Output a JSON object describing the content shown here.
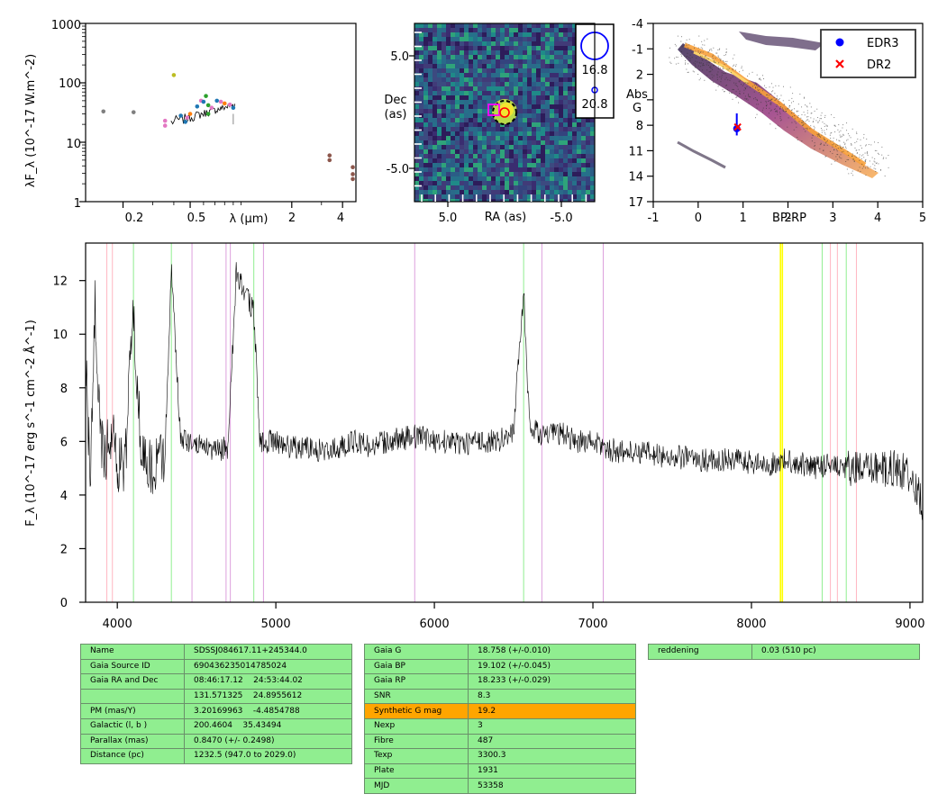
{
  "sed": {
    "ylabel": "λF_λ (10^-17 W.m^-2)",
    "xlabel": "λ (μm)",
    "yticks": [
      "1",
      "10",
      "100",
      "1000"
    ],
    "xticks": [
      "0.2",
      "0.5",
      "2",
      "4"
    ]
  },
  "image_panel": {
    "xlabel": "RA (as)",
    "ylabel": "Dec (as)",
    "xticks": [
      "5.0",
      "-5.0"
    ],
    "yticks": [
      "5.0",
      "-5.0"
    ],
    "legend": [
      "16.8",
      "20.8"
    ]
  },
  "hrd": {
    "xlabel": "BP-RP",
    "ylabel": "Abs G",
    "xticks": [
      "-1",
      "0",
      "1",
      "2",
      "3",
      "4",
      "5"
    ],
    "yticks": [
      "-4",
      "-1",
      "2",
      "5",
      "8",
      "11",
      "14",
      "17"
    ],
    "legend": [
      {
        "label": "EDR3",
        "color": "#0000ff"
      },
      {
        "label": "DR2",
        "color": "#ff0000"
      }
    ]
  },
  "spectrum": {
    "ylabel": "F_λ (10^-17 erg s^-1 cm^-2 Å^-1)",
    "xticks": [
      "4000",
      "5000",
      "6000",
      "7000",
      "8000",
      "9000"
    ],
    "yticks": [
      "0",
      "2",
      "4",
      "6",
      "8",
      "10",
      "12"
    ]
  },
  "chart_data": [
    {
      "type": "scatter",
      "name": "sed",
      "xscale": "log",
      "yscale": "log",
      "xlim": [
        0.12,
        4.8
      ],
      "ylim": [
        1,
        1000
      ],
      "points": [
        {
          "x": 0.153,
          "y": 33,
          "color": "#7f7f7f"
        },
        {
          "x": 0.231,
          "y": 32,
          "color": "#7f7f7f"
        },
        {
          "x": 0.355,
          "y": 23,
          "color": "#e377c2"
        },
        {
          "x": 0.355,
          "y": 19,
          "color": "#e377c2"
        },
        {
          "x": 0.4,
          "y": 135,
          "color": "#bcbd22"
        },
        {
          "x": 0.44,
          "y": 28,
          "color": "#1f77b4"
        },
        {
          "x": 0.468,
          "y": 22,
          "color": "#1f77b4"
        },
        {
          "x": 0.48,
          "y": 26,
          "color": "#e377c2"
        },
        {
          "x": 0.5,
          "y": 30,
          "color": "#ff7f0e"
        },
        {
          "x": 0.55,
          "y": 40,
          "color": "#1f77b4"
        },
        {
          "x": 0.58,
          "y": 50,
          "color": "#e377c2"
        },
        {
          "x": 0.6,
          "y": 48,
          "color": "#1f77b4"
        },
        {
          "x": 0.62,
          "y": 60,
          "color": "#2ca02c"
        },
        {
          "x": 0.64,
          "y": 42,
          "color": "#2ca02c"
        },
        {
          "x": 0.64,
          "y": 30,
          "color": "#2ca02c"
        },
        {
          "x": 0.67,
          "y": 38,
          "color": "#e377c2"
        },
        {
          "x": 0.72,
          "y": 50,
          "color": "#1f77b4"
        },
        {
          "x": 0.76,
          "y": 48,
          "color": "#e377c2"
        },
        {
          "x": 0.8,
          "y": 45,
          "color": "#ff7f0e"
        },
        {
          "x": 0.86,
          "y": 43,
          "color": "#e377c2"
        },
        {
          "x": 0.9,
          "y": 38,
          "color": "#1f77b4"
        },
        {
          "x": 3.35,
          "y": 6,
          "color": "#8c564b"
        },
        {
          "x": 3.35,
          "y": 5,
          "color": "#8c564b"
        },
        {
          "x": 4.6,
          "y": 3.8,
          "color": "#8c564b"
        },
        {
          "x": 4.6,
          "y": 2.9,
          "color": "#8c564b"
        },
        {
          "x": 4.6,
          "y": 2.4,
          "color": "#8c564b"
        }
      ]
    },
    {
      "type": "scatter",
      "name": "hrd",
      "xlim": [
        -1,
        5
      ],
      "ylim": [
        17,
        -4
      ],
      "series": [
        {
          "name": "EDR3",
          "x": [
            0.86
          ],
          "y": [
            8.4
          ],
          "color": "#0000ff"
        },
        {
          "name": "DR2",
          "x": [
            0.88
          ],
          "y": [
            8.2
          ],
          "color": "#ff0000"
        }
      ]
    },
    {
      "type": "line",
      "name": "spectrum",
      "xlim": [
        3800,
        9080
      ],
      "ylim": [
        0,
        13.4
      ],
      "x": [
        3800,
        3830,
        3860,
        3890,
        3920,
        3950,
        3970,
        4000,
        4050,
        4100,
        4150,
        4200,
        4300,
        4340,
        4400,
        4500,
        4600,
        4700,
        4750,
        4861,
        4900,
        5000,
        5100,
        5200,
        5300,
        5400,
        5500,
        5600,
        5700,
        5800,
        5900,
        6000,
        6100,
        6200,
        6300,
        6400,
        6500,
        6563,
        6600,
        6700,
        6800,
        6900,
        7000,
        7100,
        7200,
        7300,
        7400,
        7500,
        7600,
        7700,
        7800,
        7900,
        8000,
        8100,
        8200,
        8300,
        8400,
        8500,
        8600,
        8700,
        8800,
        8900,
        9000,
        9080
      ],
      "y": [
        9.0,
        4.5,
        11.0,
        6.5,
        5.5,
        6.0,
        6.2,
        5.2,
        5.0,
        11.2,
        5.6,
        5.0,
        5.4,
        12.5,
        6.0,
        6.0,
        5.6,
        5.8,
        12.3,
        10.8,
        6.0,
        6.0,
        5.8,
        5.8,
        5.6,
        5.8,
        6.0,
        5.8,
        6.0,
        6.1,
        6.2,
        6.0,
        6.0,
        5.9,
        6.0,
        6.0,
        6.4,
        11.6,
        6.5,
        6.2,
        6.3,
        6.0,
        6.0,
        5.7,
        5.6,
        5.6,
        5.5,
        5.4,
        5.4,
        5.3,
        5.3,
        5.3,
        5.2,
        5.1,
        5.3,
        5.2,
        5.0,
        5.2,
        5.0,
        4.9,
        5.0,
        5.0,
        4.8,
        3.6
      ],
      "vlines": [
        {
          "x": 3934,
          "color": "#ffb6c1"
        },
        {
          "x": 3969,
          "color": "#ffb6c1"
        },
        {
          "x": 4102,
          "color": "#90ee90"
        },
        {
          "x": 4341,
          "color": "#90ee90"
        },
        {
          "x": 4471,
          "color": "#dda0dd"
        },
        {
          "x": 4686,
          "color": "#dda0dd"
        },
        {
          "x": 4713,
          "color": "#dda0dd"
        },
        {
          "x": 4861,
          "color": "#90ee90"
        },
        {
          "x": 4922,
          "color": "#dda0dd"
        },
        {
          "x": 5876,
          "color": "#dda0dd"
        },
        {
          "x": 6563,
          "color": "#90ee90"
        },
        {
          "x": 6678,
          "color": "#dda0dd"
        },
        {
          "x": 7065,
          "color": "#dda0dd"
        },
        {
          "x": 8183,
          "color": "#ffff00"
        },
        {
          "x": 8195,
          "color": "#ffff00"
        },
        {
          "x": 8446,
          "color": "#90ee90"
        },
        {
          "x": 8498,
          "color": "#ffb6c1"
        },
        {
          "x": 8542,
          "color": "#ffb6c1"
        },
        {
          "x": 8598,
          "color": "#90ee90"
        },
        {
          "x": 8662,
          "color": "#ffb6c1"
        }
      ]
    }
  ],
  "tables": {
    "left": [
      {
        "k": "Name",
        "v": "SDSSJ084617.11+245344.0"
      },
      {
        "k": "Gaia Source ID",
        "v": "690436235014785024"
      },
      {
        "k": "Gaia RA and Dec",
        "v": "08:46:17.12    24:53:44.02"
      },
      {
        "k": "",
        "v": "131.571325    24.8955612"
      },
      {
        "k": "PM (mas/Y)",
        "v": "3.20169963    -4.4854788"
      },
      {
        "k": "Galactic (l, b )",
        "v": "200.4604    35.43494"
      },
      {
        "k": "Parallax (mas)",
        "v": "0.8470 (+/- 0.2498)"
      },
      {
        "k": "Distance (pc)",
        "v": "1232.5 (947.0 to 2029.0)"
      }
    ],
    "middle": [
      {
        "k": "Gaia G",
        "v": "18.758 (+/-0.010)"
      },
      {
        "k": "Gaia BP",
        "v": "19.102 (+/-0.045)"
      },
      {
        "k": "Gaia RP",
        "v": "18.233 (+/-0.029)"
      },
      {
        "k": "SNR",
        "v": "8.3"
      },
      {
        "k": "Synthetic G mag",
        "v": "19.2"
      },
      {
        "k": "Nexp",
        "v": "3"
      },
      {
        "k": "Fibre",
        "v": "487"
      },
      {
        "k": "Texp",
        "v": "3300.3"
      },
      {
        "k": "Plate",
        "v": "1931"
      },
      {
        "k": "MJD",
        "v": "53358"
      }
    ],
    "right": [
      {
        "k": "reddening",
        "v": "0.03 (510 pc)"
      }
    ],
    "highlight_color": "#ffa500",
    "cell_color": "#90ee90"
  }
}
